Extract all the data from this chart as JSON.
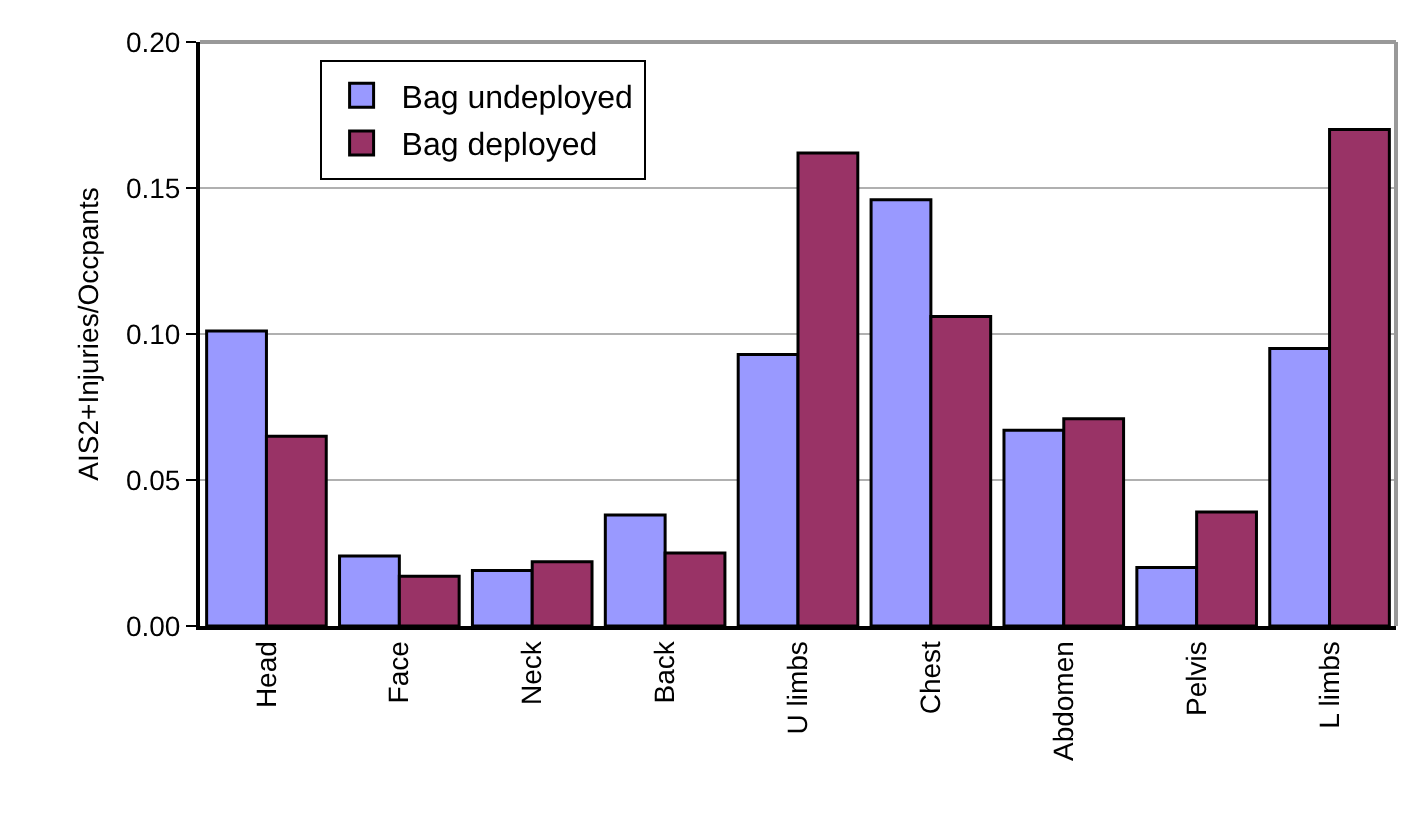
{
  "chart_data": {
    "type": "bar",
    "ylabel": "AIS2+Injuries/Occpants",
    "categories": [
      "Head",
      "Face",
      "Neck",
      "Back",
      "U limbs",
      "Chest",
      "Abdomen",
      "Pelvis",
      "L limbs"
    ],
    "series": [
      {
        "name": "Bag undeployed",
        "color": "#9999ff",
        "values": [
          0.101,
          0.024,
          0.019,
          0.038,
          0.093,
          0.146,
          0.067,
          0.02,
          0.095
        ]
      },
      {
        "name": "Bag deployed",
        "color": "#993366",
        "values": [
          0.065,
          0.017,
          0.022,
          0.025,
          0.162,
          0.106,
          0.071,
          0.039,
          0.17
        ]
      }
    ],
    "ylim": [
      0,
      0.2
    ],
    "yticks": [
      {
        "value": 0,
        "label": "0.00"
      },
      {
        "value": 0.05,
        "label": "0.05"
      },
      {
        "value": 0.1,
        "label": "0.10"
      },
      {
        "value": 0.15,
        "label": "0.15"
      },
      {
        "value": 0.2,
        "label": "0.20"
      }
    ],
    "grid": "y",
    "legend": "top left"
  }
}
